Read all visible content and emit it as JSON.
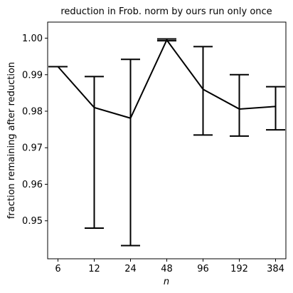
{
  "chart_data": {
    "type": "line",
    "title": "reduction in Frob. norm by ours run only once",
    "xlabel": "n",
    "ylabel": "fraction remaining after reduction",
    "categories": [
      "6",
      "12",
      "24",
      "48",
      "96",
      "192",
      "384"
    ],
    "series": [
      {
        "values": [
          0.9922,
          0.981,
          0.9781,
          0.9995,
          0.986,
          0.9806,
          0.9813
        ],
        "error_low": [
          0.9922,
          0.948,
          0.9432,
          0.9993,
          0.9735,
          0.9732,
          0.9749
        ],
        "error_high": [
          0.9922,
          0.9895,
          0.9942,
          0.9998,
          0.9977,
          0.99,
          0.9867
        ],
        "color": "#000000"
      }
    ],
    "yticks": [
      0.95,
      0.96,
      0.97,
      0.98,
      0.99,
      1.0
    ],
    "ytick_labels": [
      "0.95",
      "0.96",
      "0.97",
      "0.98",
      "0.99",
      "1.00"
    ],
    "ylim": [
      0.9396,
      1.0044
    ],
    "grid": false,
    "legend": "none"
  }
}
